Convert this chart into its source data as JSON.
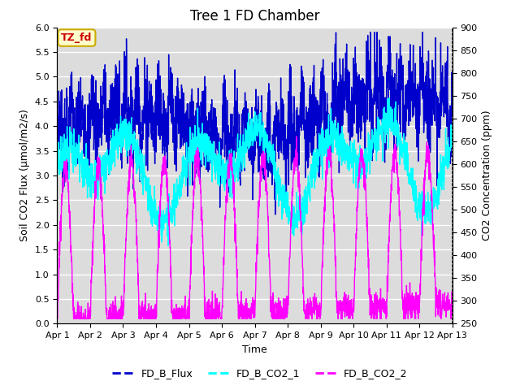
{
  "title": "Tree 1 FD Chamber",
  "xlabel": "Time",
  "ylabel_left": "Soil CO2 Flux (μmol/m2/s)",
  "ylabel_right": "CO2 Concentration (ppm)",
  "ylim_left": [
    0.0,
    6.0
  ],
  "ylim_right": [
    250,
    900
  ],
  "xlim": [
    0,
    12
  ],
  "xtick_labels": [
    "Apr 1",
    "Apr 2",
    "Apr 3",
    "Apr 4",
    "Apr 5",
    "Apr 6",
    "Apr 7",
    "Apr 8",
    "Apr 9",
    "Apr 10",
    "Apr 11",
    "Apr 12",
    "Apr 13"
  ],
  "xtick_positions": [
    0,
    1,
    2,
    3,
    4,
    5,
    6,
    7,
    8,
    9,
    10,
    11,
    12
  ],
  "ytick_left": [
    0.0,
    0.5,
    1.0,
    1.5,
    2.0,
    2.5,
    3.0,
    3.5,
    4.0,
    4.5,
    5.0,
    5.5,
    6.0
  ],
  "ytick_right": [
    250,
    300,
    350,
    400,
    450,
    500,
    550,
    600,
    650,
    700,
    750,
    800,
    850,
    900
  ],
  "color_flux": "#0000CD",
  "color_co2_1": "#00FFFF",
  "color_co2_2": "#FF00FF",
  "legend_labels": [
    "FD_B_Flux",
    "FD_B_CO2_1",
    "FD_B_CO2_2"
  ],
  "annotation_text": "TZ_fd",
  "annotation_color_text": "#CC0000",
  "annotation_bg": "#FFFFCC",
  "annotation_border": "#CCAA00",
  "bg_color": "#DCDCDC",
  "grid_color": "#FFFFFF",
  "title_fontsize": 12,
  "axis_label_fontsize": 9,
  "tick_fontsize": 8,
  "legend_fontsize": 9,
  "linewidth_flux": 1.0,
  "linewidth_co2": 1.0,
  "n_points": 2000,
  "right_axis_dotted": true
}
